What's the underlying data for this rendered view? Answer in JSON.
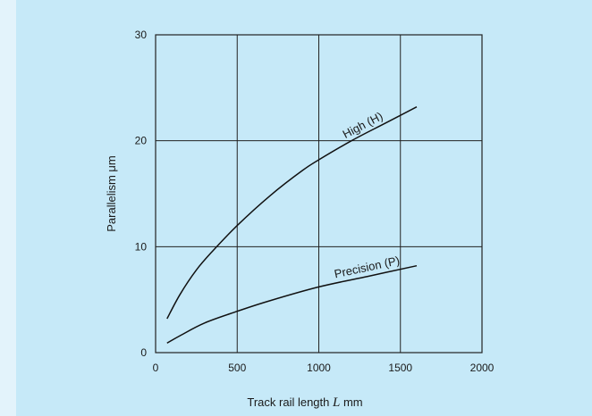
{
  "chart_data": {
    "type": "line",
    "title": "",
    "xlabel_main": "Track rail length ",
    "xlabel_var": "L",
    "xlabel_unit": " mm",
    "ylabel": "Parallelism μm",
    "xlim": [
      0,
      2000
    ],
    "ylim": [
      0,
      30
    ],
    "xticks": [
      0,
      500,
      1000,
      1500,
      2000
    ],
    "yticks": [
      0,
      10,
      20,
      30
    ],
    "grid": true,
    "series": [
      {
        "name": "High (H)",
        "label_text": "High",
        "label_paren": "(H)",
        "x": [
          70,
          150,
          250,
          350,
          500,
          700,
          900,
          1000,
          1200,
          1400,
          1600
        ],
        "y": [
          3.2,
          5.5,
          7.8,
          9.6,
          12.0,
          14.8,
          17.2,
          18.2,
          20.0,
          21.6,
          23.2
        ]
      },
      {
        "name": "Precision (P)",
        "label_text": "Precision",
        "label_paren": "(P)",
        "x": [
          70,
          150,
          300,
          500,
          700,
          1000,
          1300,
          1600
        ],
        "y": [
          0.9,
          1.6,
          2.8,
          3.9,
          4.9,
          6.2,
          7.2,
          8.2
        ]
      }
    ]
  }
}
